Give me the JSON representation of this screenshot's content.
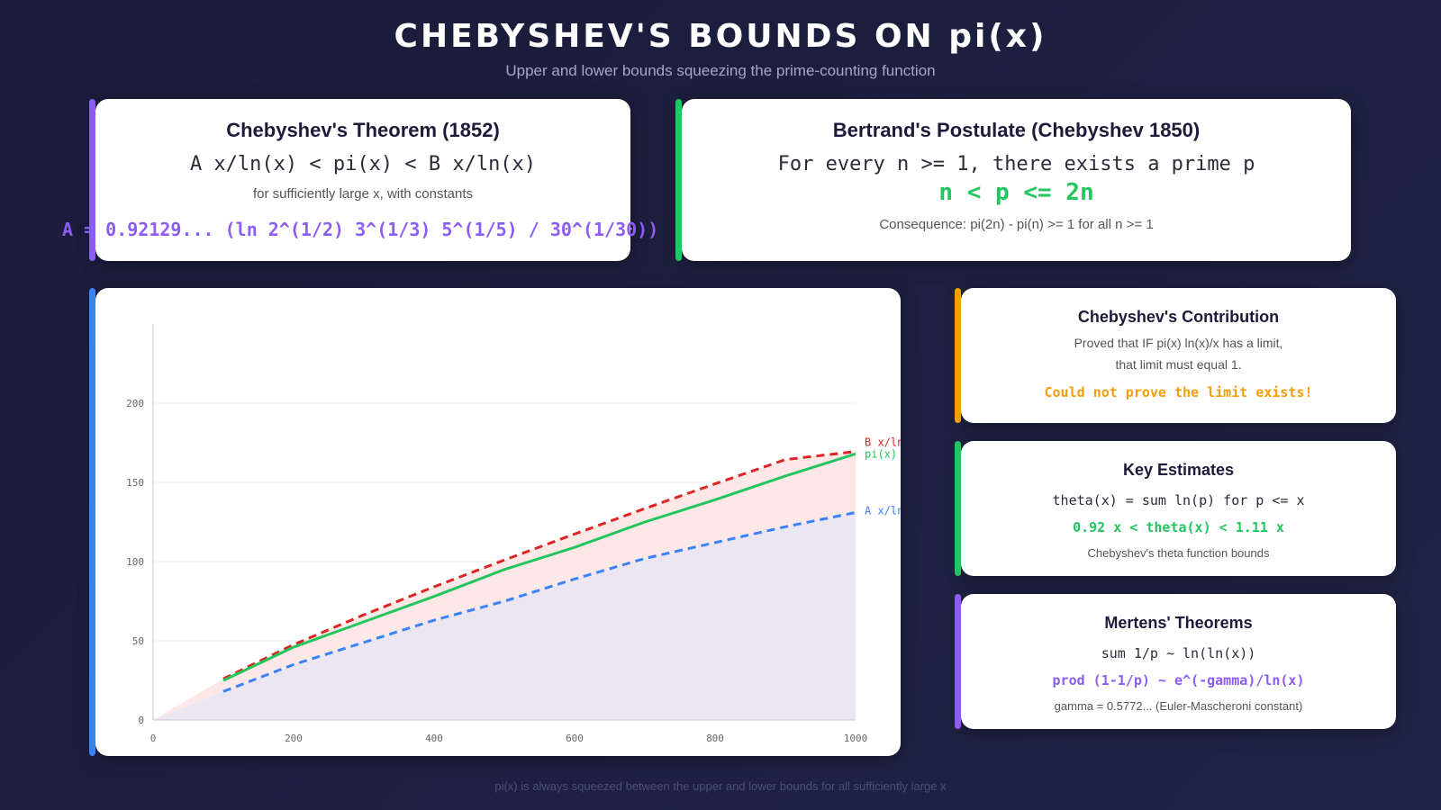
{
  "header": {
    "title": "CHEBYSHEV'S BOUNDS ON pi(x)",
    "subtitle": "Upper and lower bounds squeezing the prime-counting function"
  },
  "theorem_card": {
    "title": "Chebyshev's Theorem (1852)",
    "formula": "A x/ln(x) < pi(x) < B x/ln(x)",
    "note": "for sufficiently large x, with constants",
    "constant": "A = 0.92129... (ln 2^(1/2) 3^(1/3) 5^(1/5) / 30^(1/30))",
    "accent_color": "#8b5cf6"
  },
  "bertrand_card": {
    "title": "Bertrand's Postulate (Chebyshev 1850)",
    "statement": "For every n >= 1, there exists a prime p",
    "inequality": "n < p <= 2n",
    "consequence": "Consequence: pi(2n) - pi(n) >= 1 for all n >= 1",
    "accent_color": "#22c55e"
  },
  "contribution_card": {
    "title": "Chebyshev's Contribution",
    "line1": "Proved that IF pi(x) ln(x)/x has a limit,",
    "line2": "that limit must equal 1.",
    "highlight": "Could not prove the limit exists!",
    "accent_color": "#f59e0b"
  },
  "estimates_card": {
    "title": "Key Estimates",
    "line1": "theta(x) = sum ln(p) for p <= x",
    "line2": "0.92 x < theta(x) < 1.11 x",
    "note": "Chebyshev's theta function bounds",
    "accent_color": "#22c55e"
  },
  "mertens_card": {
    "title": "Mertens' Theorems",
    "line1": "sum 1/p ~ ln(ln(x))",
    "line2": "prod (1-1/p) ~ e^(-gamma)/ln(x)",
    "note": "gamma = 0.5772... (Euler-Mascheroni constant)",
    "accent_color": "#8b5cf6"
  },
  "chart_accent_color": "#3b82f6",
  "footer": "pi(x) is always squeezed between the upper and lower bounds for all sufficiently large x",
  "chart_data": {
    "type": "line",
    "title": "",
    "xlabel": "",
    "ylabel": "",
    "xlim": [
      0,
      1000
    ],
    "ylim": [
      0,
      250
    ],
    "x_ticks": [
      0,
      200,
      400,
      600,
      800,
      1000
    ],
    "y_ticks": [
      0,
      50,
      100,
      150,
      200
    ],
    "grid": true,
    "x": [
      100,
      200,
      300,
      400,
      500,
      600,
      700,
      800,
      900,
      1000
    ],
    "series": [
      {
        "name": "B x/ln x",
        "color": "#dc2626",
        "dashed": true,
        "values": [
          26,
          47.6,
          66.4,
          84.1,
          101,
          117.4,
          133.5,
          149.1,
          164.4,
          169.5
        ]
      },
      {
        "name": "pi(x)",
        "color": "#22c55e",
        "dashed": false,
        "values": [
          25,
          46,
          62,
          78,
          95,
          109,
          125,
          139,
          154,
          168
        ]
      },
      {
        "name": "A x/ln x",
        "color": "#3b82f6",
        "dashed": true,
        "values": [
          18,
          35,
          49,
          63,
          75,
          89,
          102,
          112,
          122,
          131
        ]
      }
    ],
    "shaded_regions": [
      {
        "between": [
          "A x/ln x",
          "B x/ln x"
        ],
        "color": "#fde2e2"
      },
      {
        "below": "A x/ln x",
        "color": "#e9e3f0"
      }
    ]
  }
}
